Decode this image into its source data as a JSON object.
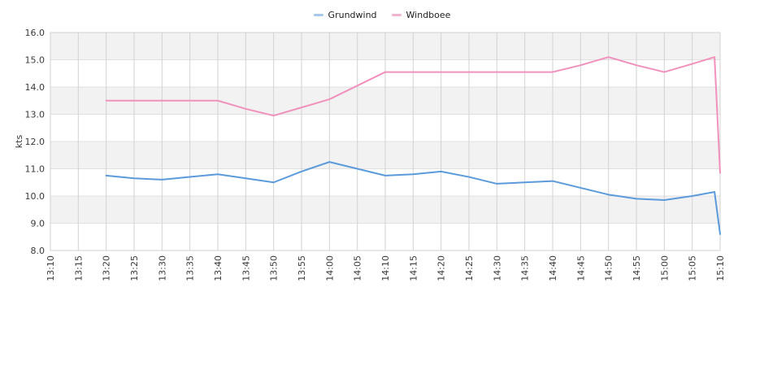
{
  "legend": {
    "position": "top-center"
  },
  "chart_data": {
    "type": "line",
    "title": "",
    "xlabel": "",
    "ylabel": "kts",
    "ylim": [
      8.0,
      16.0
    ],
    "ytick_step": 1.0,
    "ytick_labels": [
      "16.0",
      "15.0",
      "14.0",
      "13.0",
      "12.0",
      "11.0",
      "10.0",
      "9.0",
      "8.0"
    ],
    "x_ticks": [
      "13:10",
      "13:15",
      "13:20",
      "13:25",
      "13:30",
      "13:35",
      "13:40",
      "13:45",
      "13:50",
      "13:55",
      "14:00",
      "14:05",
      "14:10",
      "14:15",
      "14:20",
      "14:25",
      "14:30",
      "14:35",
      "14:40",
      "14:45",
      "14:50",
      "14:55",
      "15:00",
      "15:05",
      "15:10"
    ],
    "x_tick_label_rotation": 90,
    "grid": true,
    "band_colors": [
      "#f2f2f2",
      "#ffffff"
    ],
    "gridline_color_vertical": "#d2d2d2",
    "gridline_color_horizontal": "#e0e0e0",
    "legend_position": "top-center",
    "x": [
      "13:20",
      "13:25",
      "13:30",
      "13:35",
      "13:40",
      "13:45",
      "13:50",
      "13:55",
      "14:00",
      "14:05",
      "14:10",
      "14:15",
      "14:20",
      "14:25",
      "14:30",
      "14:35",
      "14:40",
      "14:45",
      "14:50",
      "14:55",
      "15:00",
      "15:05",
      "15:09",
      "15:10"
    ],
    "series": [
      {
        "name": "Grundwind",
        "color": "#5b9bdb",
        "swatch_color": "#a6c9e9",
        "values": [
          10.75,
          10.65,
          10.6,
          10.7,
          10.8,
          10.65,
          10.5,
          10.9,
          11.25,
          11.0,
          10.75,
          10.8,
          10.9,
          10.7,
          10.45,
          10.5,
          10.55,
          10.3,
          10.05,
          9.9,
          9.85,
          10.0,
          10.15,
          8.6
        ]
      },
      {
        "name": "Windboee",
        "color": "#f191bd",
        "swatch_color": "#f2b3d0",
        "values": [
          13.5,
          13.5,
          13.5,
          13.5,
          13.5,
          13.2,
          12.95,
          13.25,
          13.55,
          14.05,
          14.55,
          14.55,
          14.55,
          14.55,
          14.55,
          14.55,
          14.55,
          14.8,
          15.1,
          14.8,
          14.55,
          14.85,
          15.1,
          10.85
        ]
      }
    ]
  }
}
